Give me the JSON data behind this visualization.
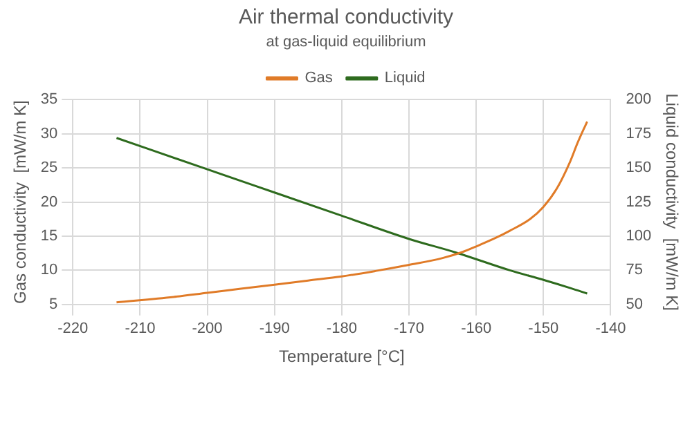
{
  "chart_data": {
    "type": "line",
    "title": "Air thermal conductivity",
    "subtitle": "at gas-liquid equilibrium",
    "xlabel": "Temperature [°C]",
    "ylabel": "Gas conductivity  [mW/m K]",
    "y2label": "Liquid conductivity  [mW/m K]",
    "xlim": [
      -220,
      -140
    ],
    "xticks": [
      -220,
      -210,
      -200,
      -190,
      -180,
      -170,
      -160,
      -150,
      -140
    ],
    "ylim": [
      5,
      35
    ],
    "yticks": [
      5,
      10,
      15,
      20,
      25,
      30,
      35
    ],
    "y2lim": [
      50,
      200
    ],
    "y2ticks": [
      50,
      75,
      100,
      125,
      150,
      175,
      200
    ],
    "series": [
      {
        "name": "Gas",
        "color": "#e07b28",
        "x": [
          -213.5,
          -205,
          -200,
          -195,
          -190,
          -185,
          -180,
          -175,
          -170,
          -165,
          -162,
          -160,
          -157,
          -155,
          -152,
          -150,
          -148,
          -146,
          -145,
          -143.5
        ],
        "values": [
          5.3,
          6.1,
          6.7,
          7.3,
          7.9,
          8.5,
          9.1,
          9.9,
          10.8,
          11.8,
          12.7,
          13.5,
          14.8,
          15.8,
          17.5,
          19.3,
          22,
          26,
          28.5,
          31.8
        ]
      },
      {
        "name": "Liquid",
        "color": "#2e6b1e",
        "axis": "y2",
        "x": [
          -213.5,
          -200,
          -190,
          -180,
          -170,
          -163,
          -155,
          -150,
          -146,
          -143.5
        ],
        "values": [
          172,
          149,
          132,
          115,
          98,
          88,
          75,
          68,
          62,
          58
        ]
      }
    ],
    "grid": true,
    "legend": "top",
    "marker": "none",
    "line_style": "solid"
  }
}
